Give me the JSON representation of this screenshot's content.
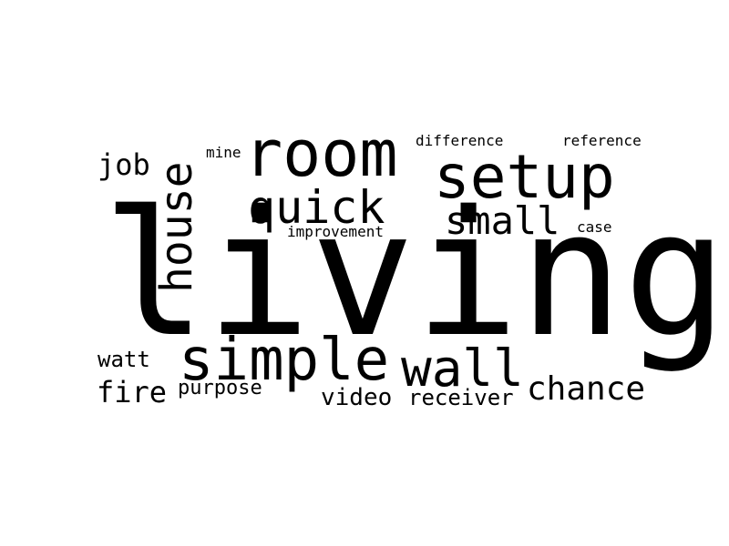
{
  "words": {
    "living": "living",
    "room": "room",
    "setup": "setup",
    "quick": "quick",
    "small": "small",
    "house": "house",
    "job": "job",
    "mine": "mine",
    "difference": "difference",
    "reference": "reference",
    "improvement": "improvement",
    "case": "case",
    "simple": "simple",
    "wall": "wall",
    "chance": "chance",
    "watt": "watt",
    "fire": "fire",
    "purpose": "purpose",
    "video": "video",
    "receiver": "receiver"
  },
  "colors": {
    "background": "#ffffff",
    "text": "#000000"
  }
}
